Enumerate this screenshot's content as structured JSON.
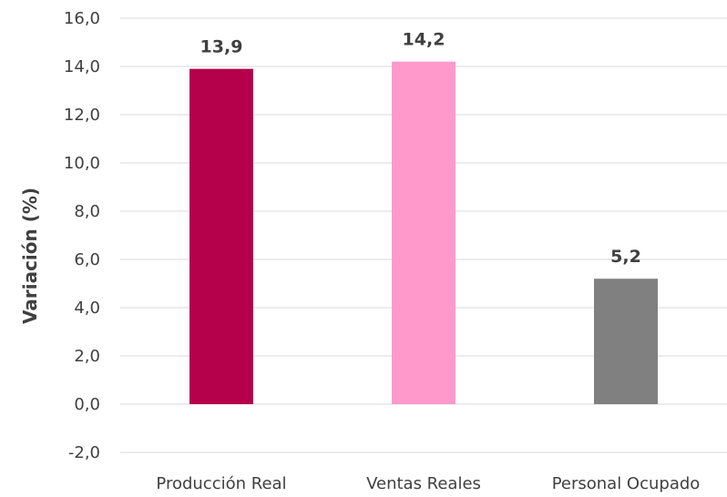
{
  "chart_data": {
    "type": "bar",
    "categories": [
      "Producción Real",
      "Ventas Reales",
      "Personal Ocupado"
    ],
    "values": [
      13.9,
      14.2,
      5.2
    ],
    "value_labels": [
      "13,9",
      "14,2",
      "5,2"
    ],
    "bar_colors": [
      "#b5004b",
      "#ff99cc",
      "#808080"
    ],
    "ylabel": "Variación (%)",
    "xlabel": "",
    "ylim": [
      -2,
      16
    ],
    "yticks": [
      -2,
      0,
      2,
      4,
      6,
      8,
      10,
      12,
      14,
      16
    ],
    "ytick_labels": [
      "-2,0",
      "0,0",
      "2,0",
      "4,0",
      "6,0",
      "8,0",
      "10,0",
      "12,0",
      "14,0",
      "16,0"
    ],
    "grid": true,
    "legend": "none"
  }
}
